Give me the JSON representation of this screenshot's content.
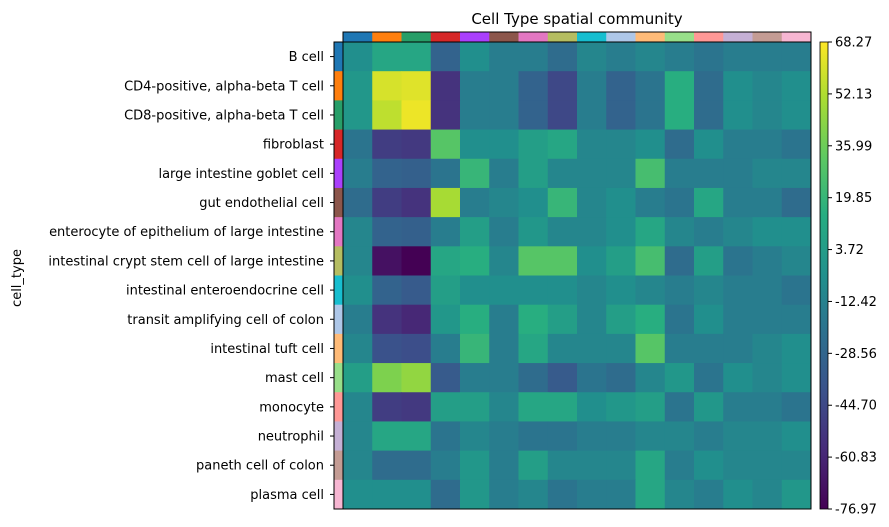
{
  "chart_data": {
    "type": "heatmap",
    "title": "Cell Type spatial community",
    "ylabel": "cell_type",
    "rows": [
      "B cell",
      "CD4-positive, alpha-beta T cell",
      "CD8-positive, alpha-beta T cell",
      "fibroblast",
      "large intestine goblet cell",
      "gut endothelial cell",
      "enterocyte of epithelium of large intestine",
      "intestinal crypt stem cell of large intestine",
      "intestinal enteroendocrine cell",
      "transit amplifying cell of colon",
      "intestinal tuft cell",
      "mast cell",
      "monocyte",
      "neutrophil",
      "paneth cell of colon",
      "plasma cell"
    ],
    "row_colors": [
      "#1f77b4",
      "#ff7f0e",
      "#279e68",
      "#d62728",
      "#aa40fc",
      "#8c564b",
      "#e377c2",
      "#b5bd61",
      "#17becf",
      "#aec7e8",
      "#ffbb78",
      "#98df8a",
      "#ff9896",
      "#c5b0d5",
      "#c49c94",
      "#f7b6d2"
    ],
    "column_colors": [
      "#1f77b4",
      "#ff7f0e",
      "#279e68",
      "#d62728",
      "#aa40fc",
      "#8c564b",
      "#e377c2",
      "#b5bd61",
      "#17becf",
      "#aec7e8",
      "#ffbb78",
      "#98df8a",
      "#ff9896",
      "#c5b0d5",
      "#c49c94",
      "#f7b6d2"
    ],
    "values": [
      [
        -5,
        10,
        10,
        -30,
        -5,
        -15,
        -15,
        -25,
        -10,
        -15,
        -10,
        -15,
        -20,
        -15,
        -15,
        -15
      ],
      [
        0,
        60,
        62,
        -55,
        -15,
        -15,
        -30,
        -45,
        -15,
        -30,
        -20,
        15,
        -25,
        -5,
        -10,
        -5
      ],
      [
        0,
        55,
        65,
        -55,
        -15,
        -15,
        -30,
        -45,
        -15,
        -30,
        -20,
        15,
        -25,
        -5,
        -10,
        -5
      ],
      [
        -20,
        -50,
        -52,
        30,
        -5,
        -5,
        5,
        10,
        -10,
        -10,
        -5,
        -25,
        -5,
        -15,
        -15,
        -20
      ],
      [
        -15,
        -30,
        -32,
        -20,
        20,
        -15,
        5,
        -10,
        -10,
        -10,
        25,
        -15,
        -15,
        -15,
        -10,
        -10
      ],
      [
        -25,
        -50,
        -55,
        50,
        -15,
        -10,
        -5,
        20,
        -10,
        -5,
        -15,
        -20,
        10,
        -15,
        -15,
        -25
      ],
      [
        -10,
        -30,
        -32,
        -15,
        5,
        -15,
        0,
        -10,
        -10,
        -5,
        10,
        -10,
        -15,
        -10,
        -5,
        -5
      ],
      [
        -10,
        -70,
        -77,
        10,
        15,
        -10,
        30,
        30,
        -5,
        5,
        25,
        -25,
        5,
        -20,
        -15,
        -10
      ],
      [
        -5,
        -30,
        -35,
        5,
        -5,
        -5,
        -5,
        -5,
        -10,
        -5,
        -10,
        -15,
        -10,
        -15,
        -15,
        -20
      ],
      [
        -15,
        -55,
        -60,
        0,
        15,
        -15,
        15,
        5,
        -10,
        5,
        15,
        -20,
        -5,
        -15,
        -15,
        -15
      ],
      [
        -10,
        -40,
        -42,
        -15,
        20,
        -15,
        10,
        -10,
        -10,
        -10,
        30,
        -15,
        -15,
        -15,
        -10,
        -5
      ],
      [
        5,
        40,
        45,
        -35,
        -15,
        -15,
        -25,
        -35,
        -20,
        -25,
        -10,
        0,
        -20,
        -5,
        -10,
        -5
      ],
      [
        -10,
        -50,
        -52,
        5,
        5,
        -10,
        10,
        10,
        -5,
        0,
        5,
        -20,
        0,
        -15,
        -15,
        -20
      ],
      [
        -10,
        10,
        10,
        -20,
        -10,
        -15,
        -20,
        -20,
        -15,
        -15,
        -10,
        -10,
        -15,
        -10,
        -10,
        -5
      ],
      [
        -10,
        -25,
        -25,
        -15,
        0,
        -15,
        5,
        -10,
        -10,
        -10,
        10,
        -15,
        -5,
        -10,
        -10,
        -10
      ],
      [
        -5,
        -5,
        -5,
        -25,
        0,
        -15,
        -10,
        -20,
        -15,
        -15,
        10,
        -10,
        -15,
        -5,
        -10,
        0
      ]
    ],
    "colorbar": {
      "colormap": "viridis",
      "min": -76.97,
      "max": 68.27,
      "ticks": [
        "68.27",
        "52.13",
        "35.99",
        "19.85",
        "3.72",
        "-12.42",
        "-28.56",
        "-44.70",
        "-60.83",
        "-76.97"
      ]
    }
  }
}
